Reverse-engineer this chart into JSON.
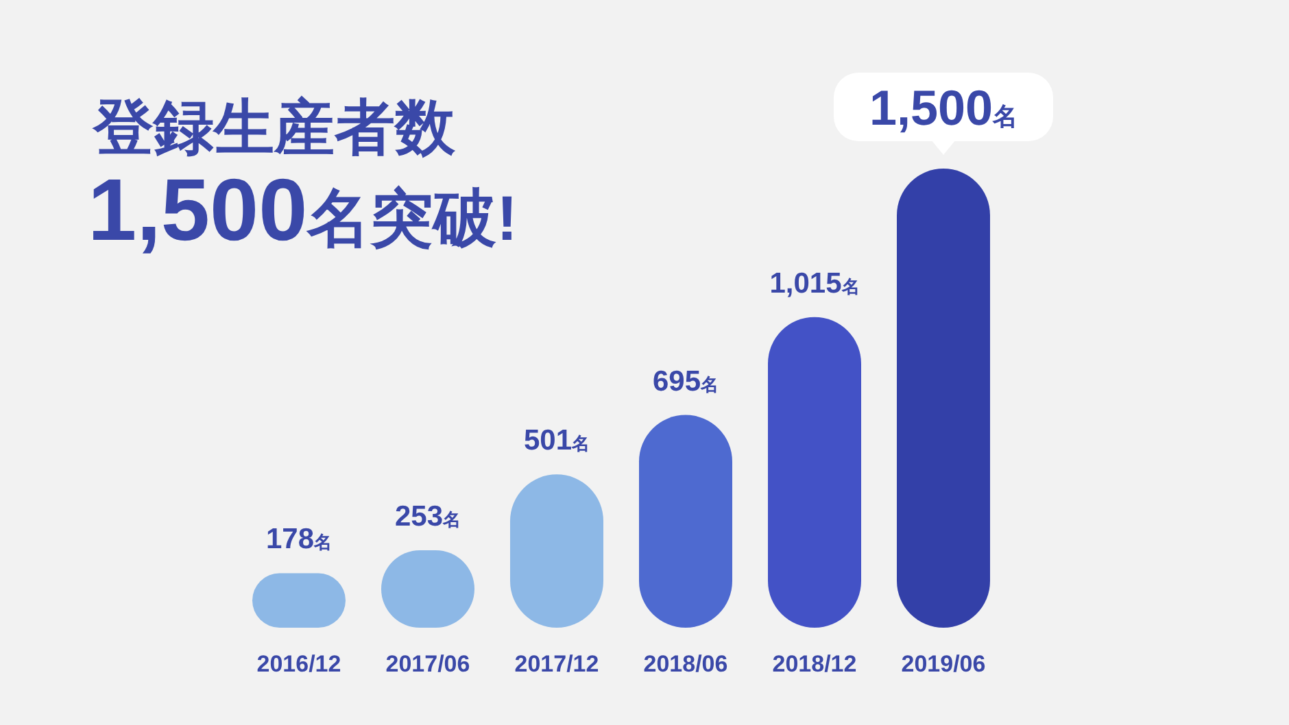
{
  "chart_data": {
    "type": "bar",
    "title": "登録生産者数",
    "subtitle": "1,500名突破!",
    "categories": [
      "2016/12",
      "2017/06",
      "2017/12",
      "2018/06",
      "2018/12",
      "2019/06"
    ],
    "values": [
      178,
      253,
      501,
      695,
      1015,
      1500
    ],
    "colors": [
      "#8db8e6",
      "#8db8e6",
      "#8db8e6",
      "#4e6ad0",
      "#4352c6",
      "#3340a8"
    ],
    "value_labels": [
      "178名",
      "253名",
      "501名",
      "695名",
      "1,015名",
      "1,500名"
    ]
  }
}
